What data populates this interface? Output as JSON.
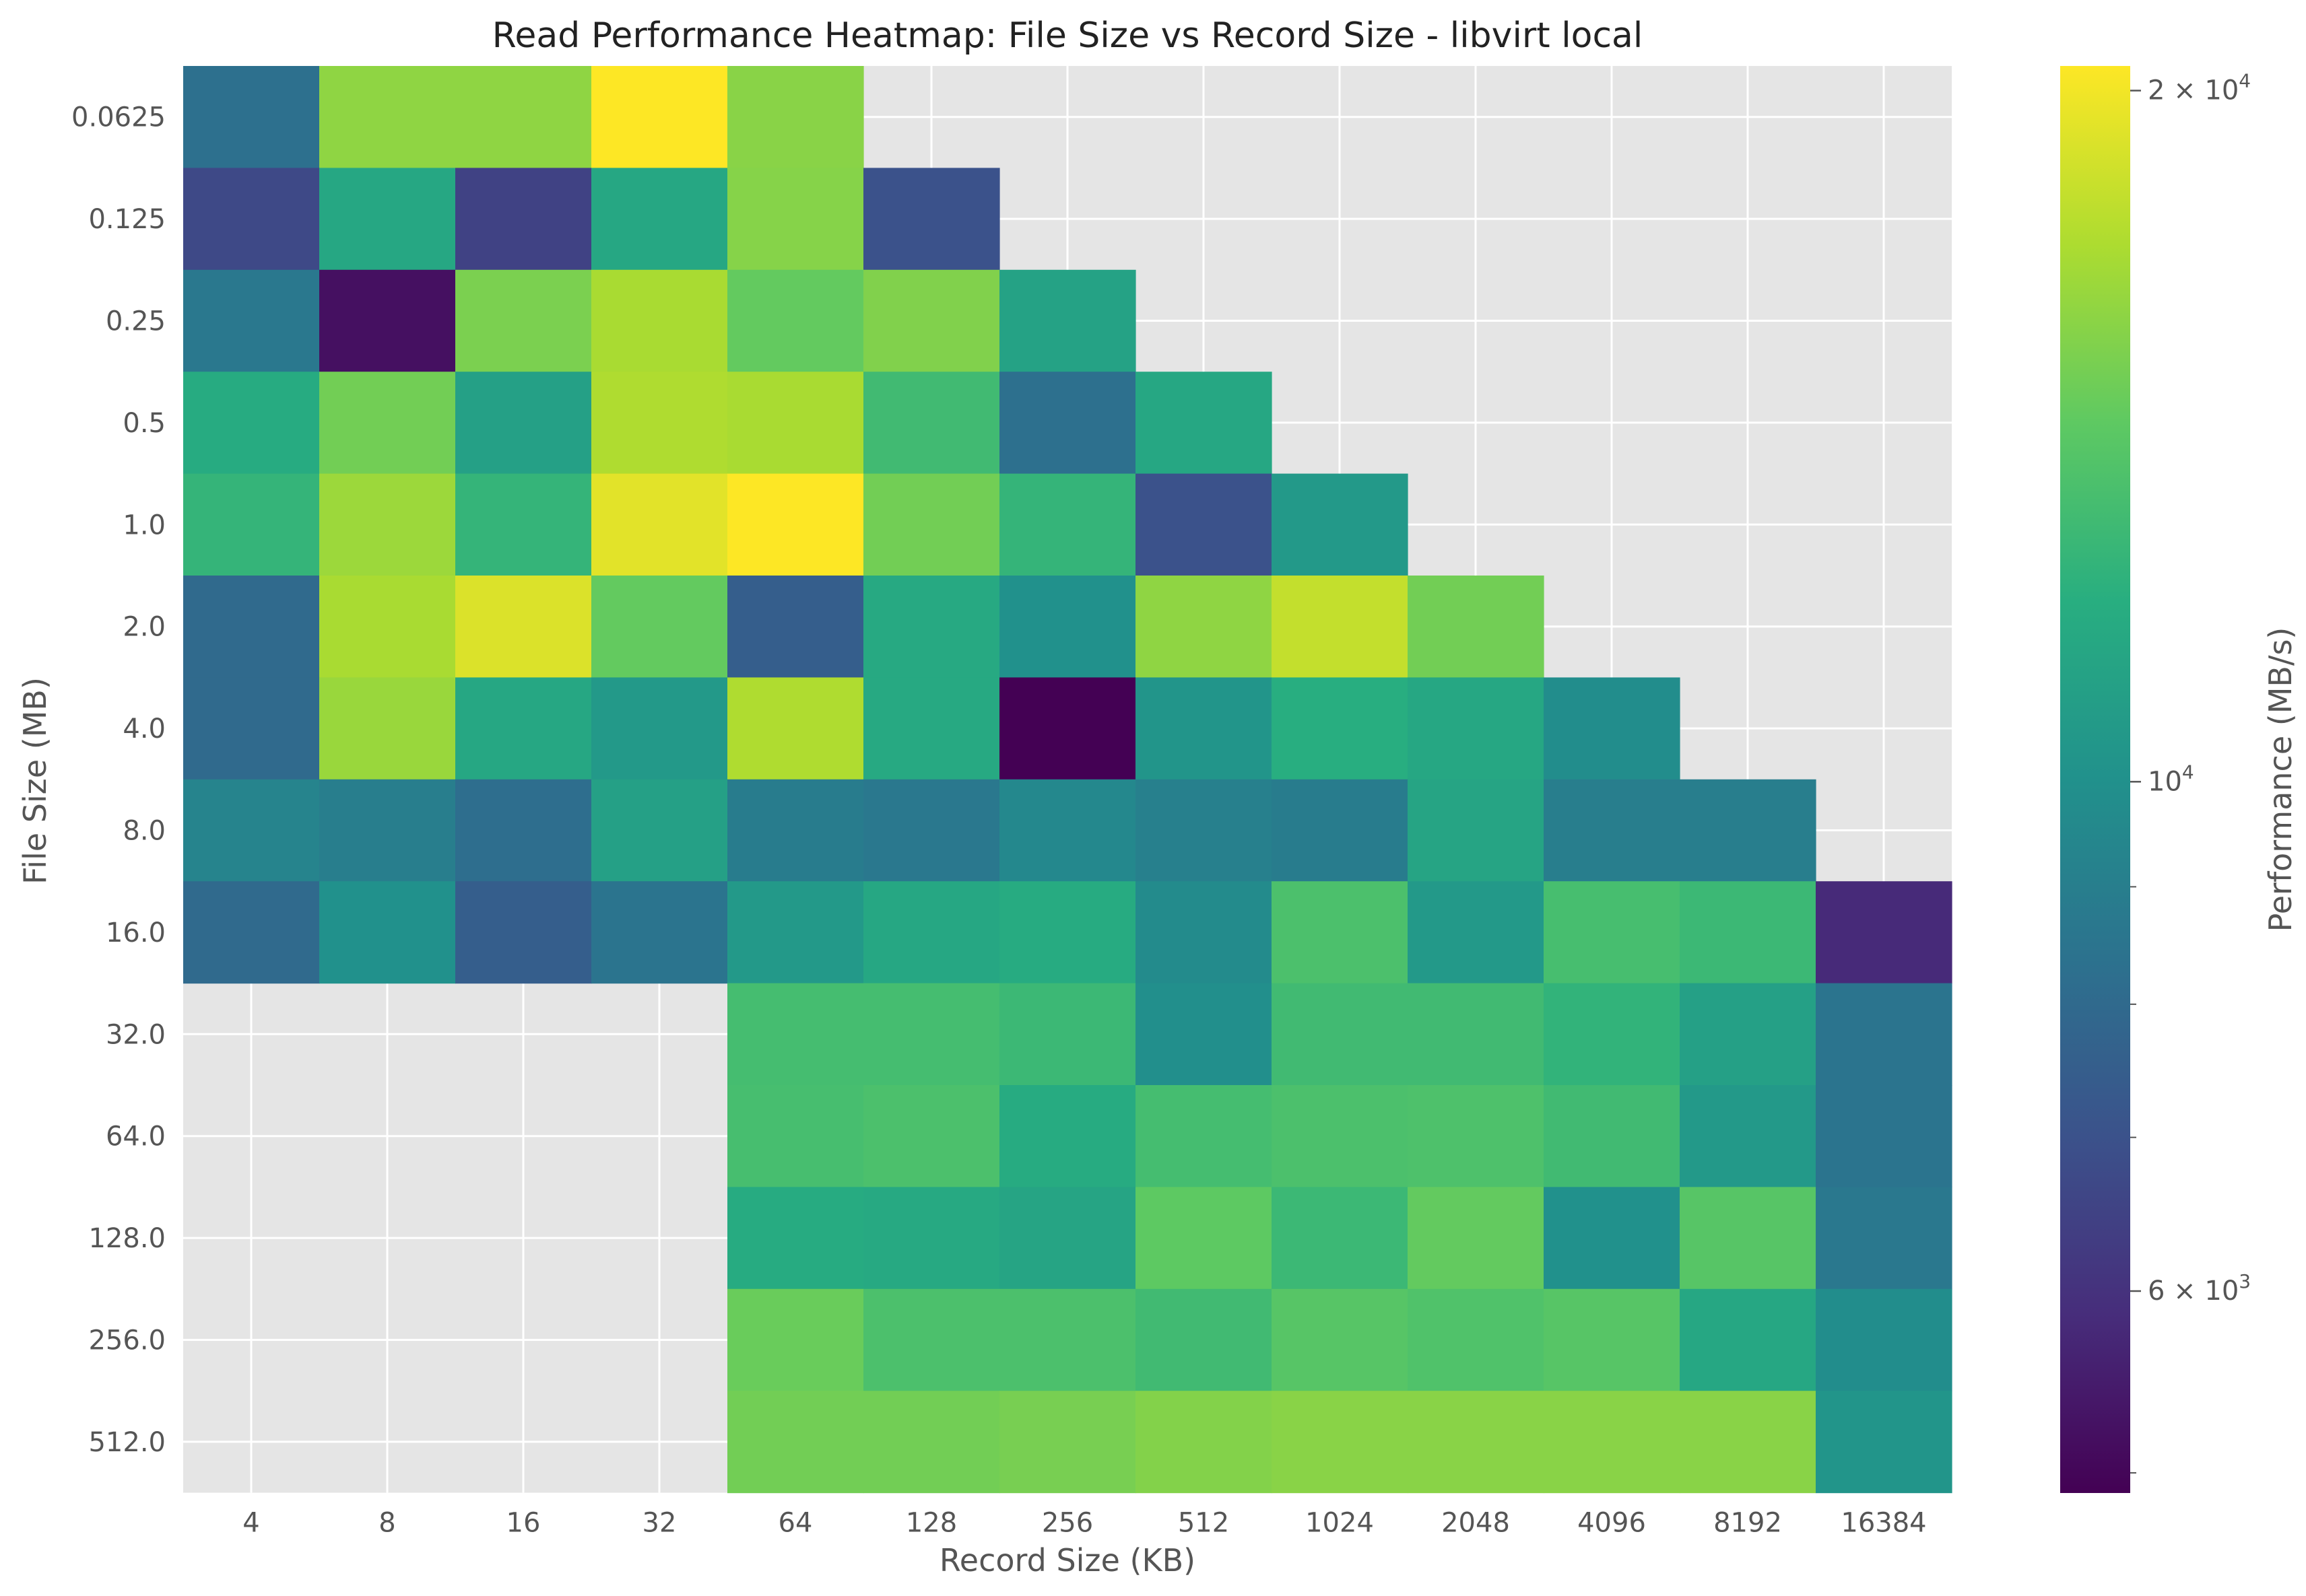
{
  "chart_data": {
    "type": "heatmap",
    "title": "Read Performance Heatmap: File Size vs Record Size - libvirt local",
    "xlabel": "Record Size (KB)",
    "ylabel": "File Size (MB)",
    "x_categories": [
      "4",
      "8",
      "16",
      "32",
      "64",
      "128",
      "256",
      "512",
      "1024",
      "2048",
      "4096",
      "8192",
      "16384"
    ],
    "y_categories": [
      "0.0625",
      "0.125",
      "0.25",
      "0.5",
      "1.0",
      "2.0",
      "4.0",
      "8.0",
      "16.0",
      "32.0",
      "64.0",
      "128.0",
      "256.0",
      "512.0"
    ],
    "values": [
      [
        8300,
        16000,
        16000,
        20500,
        15800,
        null,
        null,
        null,
        null,
        null,
        null,
        null,
        null
      ],
      [
        6700,
        11500,
        6500,
        11500,
        15700,
        7000,
        null,
        null,
        null,
        null,
        null,
        null,
        null
      ],
      [
        8700,
        5200,
        15300,
        17000,
        14500,
        15500,
        11100,
        null,
        null,
        null,
        null,
        null,
        null
      ],
      [
        11800,
        15000,
        11000,
        17200,
        17000,
        13000,
        8300,
        11500,
        null,
        null,
        null,
        null,
        null
      ],
      [
        12500,
        16500,
        12500,
        19300,
        20500,
        15000,
        12500,
        7000,
        10500,
        null,
        null,
        null,
        null
      ],
      [
        8000,
        17000,
        19000,
        14500,
        7500,
        11600,
        10000,
        16000,
        18000,
        15000,
        null,
        null,
        null
      ],
      [
        8000,
        16400,
        11500,
        10500,
        17200,
        11600,
        4900,
        10300,
        12000,
        11500,
        9800,
        null,
        null
      ],
      [
        9300,
        9000,
        8200,
        11000,
        8900,
        8700,
        9500,
        9100,
        8900,
        11300,
        9000,
        9000,
        null
      ],
      [
        8000,
        10000,
        7500,
        8500,
        10500,
        11500,
        11800,
        9700,
        13500,
        10500,
        13300,
        12800,
        5800
      ],
      [
        null,
        null,
        null,
        null,
        13200,
        13200,
        12800,
        9900,
        13000,
        13000,
        12400,
        11000,
        8500
      ],
      [
        null,
        null,
        null,
        null,
        13300,
        13500,
        11800,
        13200,
        13500,
        13600,
        13000,
        10500,
        8500
      ],
      [
        null,
        null,
        null,
        null,
        11800,
        11600,
        11300,
        14300,
        12800,
        14500,
        10000,
        14000,
        8700
      ],
      [
        null,
        null,
        null,
        null,
        14700,
        13500,
        13500,
        13000,
        14000,
        13700,
        14000,
        11500,
        9800
      ],
      [
        null,
        null,
        null,
        null,
        15000,
        15000,
        15200,
        15600,
        15800,
        15800,
        15800,
        15800,
        10300
      ]
    ],
    "colorbar": {
      "label": "Performance (MB/s)",
      "scale": "log",
      "colormap": "viridis",
      "range": [
        4900,
        20500
      ],
      "labeled_ticks": [
        {
          "value": 20000,
          "label": "2 × 10^4"
        },
        {
          "value": 10000,
          "label": "10^4"
        },
        {
          "value": 6000,
          "label": "6 × 10^3"
        }
      ],
      "minor_ticks": [
        5000,
        7000,
        8000,
        9000
      ]
    },
    "grid": true,
    "missing_color": "#e5e5e5",
    "grid_color": "#ffffff"
  }
}
